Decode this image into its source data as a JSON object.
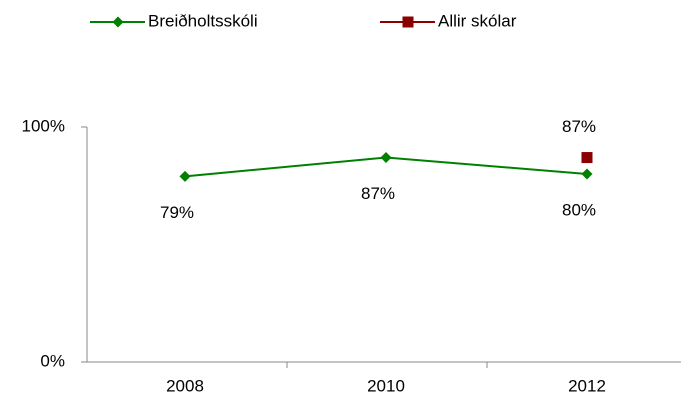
{
  "chart_data": {
    "type": "line",
    "categories": [
      "2008",
      "2010",
      "2012"
    ],
    "series": [
      {
        "name": "Breiðholtsskóli",
        "color": "#008000",
        "marker": "diamond",
        "values": [
          79,
          87,
          80
        ],
        "value_labels": [
          "79%",
          "87%",
          "80%"
        ]
      },
      {
        "name": "Allir skólar",
        "color": "#8b0000",
        "marker": "square",
        "values": [
          null,
          null,
          87
        ],
        "value_labels": [
          null,
          null,
          "87%"
        ]
      }
    ],
    "ylim": [
      0,
      100
    ],
    "yticks": [
      {
        "value": 0,
        "label": "0%"
      },
      {
        "value": 100,
        "label": "100%"
      }
    ],
    "grid": false
  }
}
